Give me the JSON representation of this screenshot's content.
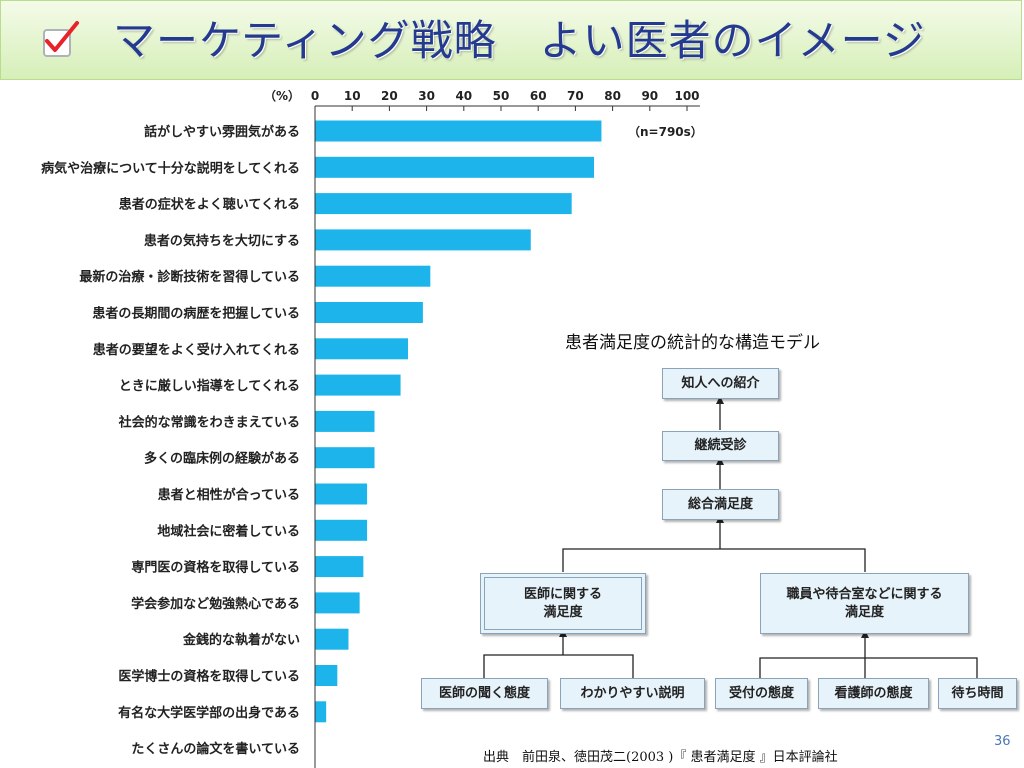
{
  "slide": {
    "title": "マーケティング戦略　よい医者のイメージ",
    "page_number": "36",
    "source": "出典　前田泉、徳田茂二(2003 )『 患者満足度 』日本評論社"
  },
  "chart_data": {
    "type": "bar",
    "orientation": "horizontal",
    "unit_label": "（%）",
    "annotation": "（n=790s）",
    "xlim": [
      0,
      100
    ],
    "x_ticks": [
      0,
      10,
      20,
      30,
      40,
      50,
      60,
      70,
      80,
      90,
      100
    ],
    "categories": [
      "話がしやすい雰囲気がある",
      "病気や治療について十分な説明をしてくれる",
      "患者の症状をよく聴いてくれる",
      "患者の気持ちを大切にする",
      "最新の治療・診断技術を習得している",
      "患者の長期間の病歴を把握している",
      "患者の要望をよく受け入れてくれる",
      "ときに厳しい指導をしてくれる",
      "社会的な常識をわきまえている",
      "多くの臨床例の経験がある",
      "患者と相性が合っている",
      "地域社会に密着している",
      "専門医の資格を取得している",
      "学会参加など勉強熱心である",
      "金銭的な執着がない",
      "医学博士の資格を取得している",
      "有名な大学医学部の出身である",
      "たくさんの論文を書いている"
    ],
    "values": [
      77,
      75,
      69,
      58,
      31,
      29,
      25,
      23,
      16,
      16,
      14,
      14,
      13,
      12,
      9,
      6,
      3,
      0
    ],
    "bar_color": "#1cb4ea"
  },
  "model": {
    "title": "患者満足度の統計的な構造モデル",
    "boxes": {
      "referral": "知人への紹介",
      "continued": "継続受診",
      "overall": "総合満足度",
      "doctor": "医師に関する\n満足度",
      "staff": "職員や待合室などに関する\n満足度",
      "listening": "医師の聞く態度",
      "explanation": "わかりやすい説明",
      "reception": "受付の態度",
      "nurse": "看護師の態度",
      "waiting": "待ち時間"
    }
  }
}
